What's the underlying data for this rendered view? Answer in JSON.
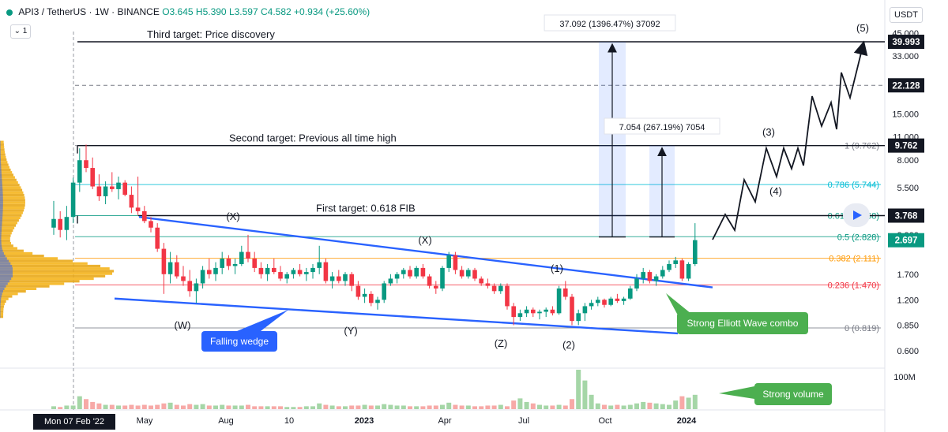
{
  "header": {
    "pair": "API3 / TetherUS · 1W · BINANCE",
    "open": "O3.645",
    "high": "H5.390",
    "low": "L3.597",
    "close": "C4.582",
    "change": "+0.934 (+25.60%)"
  },
  "interval_button": "1",
  "currency_label": "USDT",
  "crosshair_date": "Mon 07 Feb '22",
  "colors": {
    "up": "#089981",
    "down": "#f23645",
    "wedge": "#2962ff",
    "fib_teal": "#00bcd4",
    "fib_orange": "#ff9800",
    "fib_red": "#f23645",
    "fib_gray": "#787b86",
    "green_label": "#4caf50",
    "blue_label": "#2962ff",
    "volume_profile": "#f5b51d"
  },
  "chart_data": {
    "type": "candlestick",
    "price_axis_scale": "log",
    "y_axis_ticks": [
      "45.000",
      "33.000",
      "22.000",
      "15.000",
      "11.000",
      "8.000",
      "5.500",
      "3.900",
      "2.900",
      "1.700",
      "1.200",
      "0.850",
      "0.600"
    ],
    "volume_axis_tick": "100M",
    "x_axis_ticks": [
      "May",
      "Aug",
      "10",
      "2023",
      "Apr",
      "Jul",
      "Oct",
      "2024"
    ],
    "price_tags": [
      {
        "value": "39.993",
        "style": "dark"
      },
      {
        "value": "22.128",
        "style": "dark"
      },
      {
        "value": "9.762",
        "style": "dark"
      },
      {
        "value": "3.768",
        "style": "dark"
      },
      {
        "value": "2.697",
        "style": "green"
      }
    ],
    "fib_levels": [
      {
        "label": "1 (9.762)",
        "price": 9.762,
        "color": "#787b86"
      },
      {
        "label": "0.786 (5.744)",
        "price": 5.744,
        "color": "#00bcd4"
      },
      {
        "label": "0.618 (3.768)",
        "price": 3.768,
        "color": "#089981"
      },
      {
        "label": "0.5 (2.828)",
        "price": 2.828,
        "color": "#089981"
      },
      {
        "label": "0.382 (2.111)",
        "price": 2.111,
        "color": "#ff9800"
      },
      {
        "label": "0.236 (1.470)",
        "price": 1.47,
        "color": "#f23645"
      },
      {
        "label": "0 (0.819)",
        "price": 0.819,
        "color": "#787b86"
      }
    ],
    "targets": [
      {
        "label": "Third target: Price discovery",
        "price": 39.993
      },
      {
        "label": "Second target: Previous all time high",
        "price": 9.762
      },
      {
        "label": "First target: 0.618 FIB",
        "price": 3.768
      }
    ],
    "measurements": [
      {
        "label": "37.092 (1396.47%) 37092"
      },
      {
        "label": "7.054 (267.19%) 7054"
      }
    ],
    "wave_labels": [
      "(X)",
      "(W)",
      "(Y)",
      "(X)",
      "(Z)",
      "(1)",
      "(2)",
      "(3)",
      "(4)",
      "(5)"
    ],
    "callouts": [
      {
        "text": "Falling wedge",
        "color": "#2962ff"
      },
      {
        "text": "Strong Elliott Wave combo",
        "color": "#4caf50"
      },
      {
        "text": "Strong volume",
        "color": "#4caf50"
      }
    ],
    "candles": [
      {
        "o": 3.2,
        "h": 4.6,
        "l": 2.9,
        "c": 3.6
      },
      {
        "o": 3.6,
        "h": 4.0,
        "l": 2.8,
        "c": 3.1
      },
      {
        "o": 3.1,
        "h": 4.3,
        "l": 2.7,
        "c": 3.7
      },
      {
        "o": 3.7,
        "h": 6.3,
        "l": 3.4,
        "c": 5.9
      },
      {
        "o": 5.9,
        "h": 9.4,
        "l": 5.2,
        "c": 8.0
      },
      {
        "o": 8.0,
        "h": 9.9,
        "l": 6.8,
        "c": 7.2
      },
      {
        "o": 7.2,
        "h": 8.3,
        "l": 5.4,
        "c": 5.6
      },
      {
        "o": 5.6,
        "h": 6.6,
        "l": 4.6,
        "c": 4.9
      },
      {
        "o": 4.9,
        "h": 6.0,
        "l": 4.4,
        "c": 5.6
      },
      {
        "o": 5.6,
        "h": 6.8,
        "l": 5.2,
        "c": 5.4
      },
      {
        "o": 5.4,
        "h": 6.4,
        "l": 4.7,
        "c": 5.9
      },
      {
        "o": 5.9,
        "h": 6.1,
        "l": 4.9,
        "c": 5.0
      },
      {
        "o": 5.0,
        "h": 5.6,
        "l": 3.9,
        "c": 4.2
      },
      {
        "o": 4.2,
        "h": 6.4,
        "l": 3.8,
        "c": 4.0
      },
      {
        "o": 4.0,
        "h": 4.3,
        "l": 3.4,
        "c": 3.5
      },
      {
        "o": 3.5,
        "h": 3.7,
        "l": 3.0,
        "c": 3.2
      },
      {
        "o": 3.2,
        "h": 3.4,
        "l": 2.3,
        "c": 2.4
      },
      {
        "o": 2.4,
        "h": 2.6,
        "l": 1.3,
        "c": 1.7
      },
      {
        "o": 1.7,
        "h": 2.3,
        "l": 1.5,
        "c": 2.0
      },
      {
        "o": 2.0,
        "h": 2.2,
        "l": 1.6,
        "c": 1.65
      },
      {
        "o": 1.65,
        "h": 1.9,
        "l": 1.45,
        "c": 1.55
      },
      {
        "o": 1.55,
        "h": 1.8,
        "l": 1.25,
        "c": 1.35
      },
      {
        "o": 1.35,
        "h": 1.6,
        "l": 1.15,
        "c": 1.5
      },
      {
        "o": 1.5,
        "h": 1.9,
        "l": 1.4,
        "c": 1.8
      },
      {
        "o": 1.8,
        "h": 2.1,
        "l": 1.6,
        "c": 1.7
      },
      {
        "o": 1.7,
        "h": 2.0,
        "l": 1.55,
        "c": 1.85
      },
      {
        "o": 1.85,
        "h": 2.3,
        "l": 1.7,
        "c": 2.1
      },
      {
        "o": 2.1,
        "h": 2.2,
        "l": 1.8,
        "c": 1.9
      },
      {
        "o": 1.9,
        "h": 2.1,
        "l": 1.7,
        "c": 1.95
      },
      {
        "o": 1.95,
        "h": 2.5,
        "l": 1.9,
        "c": 2.3
      },
      {
        "o": 2.3,
        "h": 2.9,
        "l": 2.0,
        "c": 2.1
      },
      {
        "o": 2.1,
        "h": 2.3,
        "l": 1.75,
        "c": 1.85
      },
      {
        "o": 1.85,
        "h": 2.0,
        "l": 1.6,
        "c": 1.7
      },
      {
        "o": 1.7,
        "h": 1.95,
        "l": 1.55,
        "c": 1.85
      },
      {
        "o": 1.85,
        "h": 2.1,
        "l": 1.7,
        "c": 1.75
      },
      {
        "o": 1.75,
        "h": 1.9,
        "l": 1.55,
        "c": 1.6
      },
      {
        "o": 1.6,
        "h": 1.75,
        "l": 1.5,
        "c": 1.7
      },
      {
        "o": 1.7,
        "h": 1.85,
        "l": 1.6,
        "c": 1.8
      },
      {
        "o": 1.8,
        "h": 1.95,
        "l": 1.65,
        "c": 1.7
      },
      {
        "o": 1.7,
        "h": 1.85,
        "l": 1.55,
        "c": 1.75
      },
      {
        "o": 1.75,
        "h": 1.95,
        "l": 1.6,
        "c": 1.85
      },
      {
        "o": 1.85,
        "h": 2.5,
        "l": 1.7,
        "c": 2.0
      },
      {
        "o": 2.0,
        "h": 2.1,
        "l": 1.5,
        "c": 1.55
      },
      {
        "o": 1.55,
        "h": 1.75,
        "l": 1.4,
        "c": 1.65
      },
      {
        "o": 1.65,
        "h": 1.8,
        "l": 1.5,
        "c": 1.55
      },
      {
        "o": 1.55,
        "h": 1.75,
        "l": 1.45,
        "c": 1.7
      },
      {
        "o": 1.7,
        "h": 1.75,
        "l": 1.35,
        "c": 1.45
      },
      {
        "o": 1.45,
        "h": 1.55,
        "l": 1.2,
        "c": 1.25
      },
      {
        "o": 1.25,
        "h": 1.4,
        "l": 1.15,
        "c": 1.3
      },
      {
        "o": 1.3,
        "h": 1.35,
        "l": 1.1,
        "c": 1.15
      },
      {
        "o": 1.15,
        "h": 1.25,
        "l": 1.05,
        "c": 1.2
      },
      {
        "o": 1.2,
        "h": 1.55,
        "l": 1.15,
        "c": 1.5
      },
      {
        "o": 1.5,
        "h": 1.7,
        "l": 1.45,
        "c": 1.6
      },
      {
        "o": 1.6,
        "h": 1.75,
        "l": 1.5,
        "c": 1.7
      },
      {
        "o": 1.7,
        "h": 1.85,
        "l": 1.6,
        "c": 1.8
      },
      {
        "o": 1.8,
        "h": 1.9,
        "l": 1.6,
        "c": 1.65
      },
      {
        "o": 1.65,
        "h": 1.9,
        "l": 1.6,
        "c": 1.85
      },
      {
        "o": 1.85,
        "h": 1.95,
        "l": 1.6,
        "c": 1.65
      },
      {
        "o": 1.65,
        "h": 1.7,
        "l": 1.4,
        "c": 1.45
      },
      {
        "o": 1.45,
        "h": 1.55,
        "l": 1.3,
        "c": 1.4
      },
      {
        "o": 1.4,
        "h": 1.9,
        "l": 1.35,
        "c": 1.85
      },
      {
        "o": 1.85,
        "h": 2.3,
        "l": 1.75,
        "c": 2.2
      },
      {
        "o": 2.2,
        "h": 2.3,
        "l": 1.7,
        "c": 1.8
      },
      {
        "o": 1.8,
        "h": 1.9,
        "l": 1.6,
        "c": 1.65
      },
      {
        "o": 1.65,
        "h": 1.85,
        "l": 1.6,
        "c": 1.8
      },
      {
        "o": 1.8,
        "h": 1.85,
        "l": 1.55,
        "c": 1.6
      },
      {
        "o": 1.6,
        "h": 1.65,
        "l": 1.45,
        "c": 1.5
      },
      {
        "o": 1.5,
        "h": 1.6,
        "l": 1.4,
        "c": 1.45
      },
      {
        "o": 1.45,
        "h": 1.5,
        "l": 1.3,
        "c": 1.35
      },
      {
        "o": 1.35,
        "h": 1.5,
        "l": 1.3,
        "c": 1.45
      },
      {
        "o": 1.45,
        "h": 1.5,
        "l": 1.05,
        "c": 1.1
      },
      {
        "o": 1.1,
        "h": 1.15,
        "l": 0.85,
        "c": 0.95
      },
      {
        "o": 0.95,
        "h": 1.05,
        "l": 0.9,
        "c": 1.0
      },
      {
        "o": 1.0,
        "h": 1.1,
        "l": 0.95,
        "c": 1.05
      },
      {
        "o": 1.05,
        "h": 1.08,
        "l": 0.95,
        "c": 1.0
      },
      {
        "o": 1.0,
        "h": 1.05,
        "l": 0.92,
        "c": 1.02
      },
      {
        "o": 1.02,
        "h": 1.08,
        "l": 0.95,
        "c": 1.05
      },
      {
        "o": 1.05,
        "h": 1.1,
        "l": 0.97,
        "c": 1.0
      },
      {
        "o": 1.0,
        "h": 1.45,
        "l": 0.98,
        "c": 1.4
      },
      {
        "o": 1.4,
        "h": 1.55,
        "l": 1.2,
        "c": 1.25
      },
      {
        "o": 1.25,
        "h": 1.3,
        "l": 0.85,
        "c": 0.9
      },
      {
        "o": 0.9,
        "h": 1.05,
        "l": 0.85,
        "c": 1.0
      },
      {
        "o": 1.0,
        "h": 1.15,
        "l": 0.9,
        "c": 1.1
      },
      {
        "o": 1.1,
        "h": 1.2,
        "l": 1.05,
        "c": 1.15
      },
      {
        "o": 1.15,
        "h": 1.25,
        "l": 1.1,
        "c": 1.2
      },
      {
        "o": 1.2,
        "h": 1.22,
        "l": 1.08,
        "c": 1.12
      },
      {
        "o": 1.12,
        "h": 1.25,
        "l": 1.1,
        "c": 1.22
      },
      {
        "o": 1.22,
        "h": 1.3,
        "l": 1.15,
        "c": 1.18
      },
      {
        "o": 1.18,
        "h": 1.25,
        "l": 1.12,
        "c": 1.22
      },
      {
        "o": 1.22,
        "h": 1.45,
        "l": 1.2,
        "c": 1.4
      },
      {
        "o": 1.4,
        "h": 1.7,
        "l": 1.35,
        "c": 1.6
      },
      {
        "o": 1.6,
        "h": 1.85,
        "l": 1.5,
        "c": 1.75
      },
      {
        "o": 1.75,
        "h": 1.8,
        "l": 1.5,
        "c": 1.55
      },
      {
        "o": 1.55,
        "h": 1.7,
        "l": 1.45,
        "c": 1.65
      },
      {
        "o": 1.65,
        "h": 1.9,
        "l": 1.6,
        "c": 1.8
      },
      {
        "o": 1.8,
        "h": 2.05,
        "l": 1.75,
        "c": 1.95
      },
      {
        "o": 1.95,
        "h": 2.15,
        "l": 1.85,
        "c": 2.05
      },
      {
        "o": 2.05,
        "h": 2.1,
        "l": 1.55,
        "c": 1.6
      },
      {
        "o": 1.6,
        "h": 2.0,
        "l": 1.55,
        "c": 1.95
      },
      {
        "o": 1.95,
        "h": 3.4,
        "l": 1.9,
        "c": 2.7
      }
    ],
    "volumes": [
      4,
      3,
      5,
      5,
      18,
      14,
      10,
      8,
      6,
      6,
      5,
      5,
      6,
      5,
      6,
      5,
      6,
      8,
      9,
      6,
      5,
      7,
      6,
      7,
      5,
      5,
      6,
      5,
      5,
      5,
      6,
      4,
      4,
      4,
      4,
      4,
      3,
      3,
      3,
      4,
      4,
      8,
      6,
      5,
      4,
      4,
      5,
      5,
      6,
      5,
      5,
      7,
      6,
      5,
      5,
      4,
      4,
      4,
      5,
      5,
      6,
      9,
      6,
      5,
      5,
      4,
      4,
      5,
      5,
      6,
      4,
      12,
      15,
      10,
      8,
      6,
      5,
      5,
      6,
      5,
      14,
      55,
      40,
      20,
      8,
      6,
      5,
      6,
      5,
      6,
      8,
      10,
      9,
      8,
      7,
      6,
      12,
      18,
      16,
      20,
      28
    ]
  }
}
